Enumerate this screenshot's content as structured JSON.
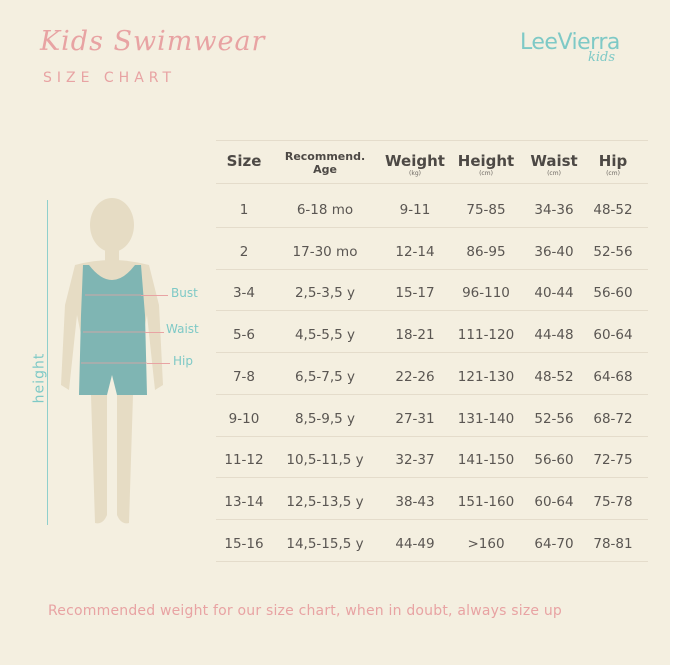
{
  "header": {
    "title": "Kids Swimwear",
    "subtitle": "SIZE CHART",
    "brand": "LeeVierra",
    "brand_sub": "kids"
  },
  "figure": {
    "height_label": "height",
    "bust_label": "Bust",
    "waist_label": "Waist",
    "hip_label": "Hip"
  },
  "table": {
    "headers": [
      {
        "label": "Size",
        "unit": ""
      },
      {
        "label": "Recommend.",
        "label2": "Age",
        "unit": ""
      },
      {
        "label": "Weight",
        "unit": "(kg)"
      },
      {
        "label": "Height",
        "unit": "(cm)"
      },
      {
        "label": "Waist",
        "unit": "(cm)"
      },
      {
        "label": "Hip",
        "unit": "(cm)"
      }
    ],
    "rows": [
      [
        "1",
        "6-18 mo",
        "9-11",
        "75-85",
        "34-36",
        "48-52"
      ],
      [
        "2",
        "17-30 mo",
        "12-14",
        "86-95",
        "36-40",
        "52-56"
      ],
      [
        "3-4",
        "2,5-3,5 y",
        "15-17",
        "96-110",
        "40-44",
        "56-60"
      ],
      [
        "5-6",
        "4,5-5,5 y",
        "18-21",
        "111-120",
        "44-48",
        "60-64"
      ],
      [
        "7-8",
        "6,5-7,5 y",
        "22-26",
        "121-130",
        "48-52",
        "64-68"
      ],
      [
        "9-10",
        "8,5-9,5 y",
        "27-31",
        "131-140",
        "52-56",
        "68-72"
      ],
      [
        "11-12",
        "10,5-11,5 y",
        "32-37",
        "141-150",
        "56-60",
        "72-75"
      ],
      [
        "13-14",
        "12,5-13,5 y",
        "38-43",
        "151-160",
        "60-64",
        "75-78"
      ],
      [
        "15-16",
        "14,5-15,5 y",
        "44-49",
        ">160",
        "64-70",
        "78-81"
      ]
    ]
  },
  "footnote": "Recommended weight for our size chart, when in doubt, always size up",
  "colors": {
    "background": "#f4efe0",
    "accent_pink": "#e8a3a3",
    "accent_teal": "#7ec9c6",
    "swimsuit": "#7fb5b3",
    "skin": "#e6dcc4"
  }
}
